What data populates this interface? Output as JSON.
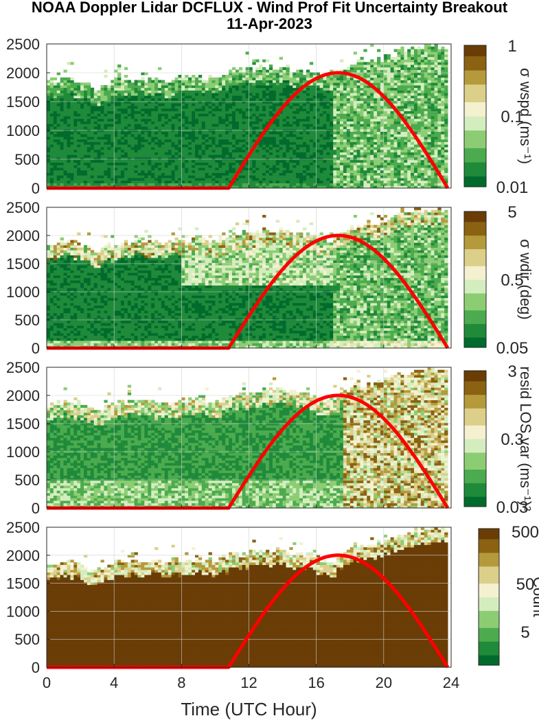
{
  "title_line1": "NOAA Doppler Lidar DCFLUX - Wind Prof Fit Uncertainty Breakout",
  "title_line2": "11-Apr-2023",
  "colors": {
    "sun_curve": "#ff0000",
    "colormap": [
      "#006b2c",
      "#1f8a3a",
      "#4cab4e",
      "#8ccd74",
      "#d4edbf",
      "#f4f1d0",
      "#dccf8a",
      "#b59a3c",
      "#8a6212",
      "#6a3c06"
    ]
  },
  "chart_data": [
    {
      "type": "heatmap",
      "panel": "wspd uncertainty",
      "xlim": [
        0,
        24
      ],
      "ylim": [
        0,
        2500
      ],
      "yticks": [
        "0",
        "500",
        "1000",
        "1500",
        "2000",
        "2500"
      ],
      "colorbar": {
        "label": "σ wspd (ms⁻¹)",
        "scale": "log",
        "ticks": [
          "1",
          "0.1",
          "0.01"
        ]
      },
      "cloud_top_m": [
        1850,
        1900,
        1850,
        1700,
        1850,
        1900,
        1900,
        1850,
        1900,
        1950,
        1900,
        2000,
        2050,
        2100,
        2100,
        2050,
        1950,
        1900,
        2150,
        2200,
        2250,
        2400,
        2450,
        2450
      ],
      "sun_curve": {
        "x": [
          0,
          10.8,
          17.2,
          23.8
        ],
        "y": [
          0,
          0,
          2000,
          0
        ]
      }
    },
    {
      "type": "heatmap",
      "panel": "wdir uncertainty",
      "xlim": [
        0,
        24
      ],
      "ylim": [
        0,
        2500
      ],
      "yticks": [
        "0",
        "500",
        "1000",
        "1500",
        "2000",
        "2500"
      ],
      "colorbar": {
        "label": "σ wdir (deg)",
        "scale": "log",
        "ticks": [
          "5",
          "0.5",
          "0.05"
        ]
      },
      "sun_curve": {
        "x": [
          0,
          10.8,
          17.2,
          23.8
        ],
        "y": [
          0,
          0,
          2000,
          0
        ]
      }
    },
    {
      "type": "heatmap",
      "panel": "residual LOS variance",
      "xlim": [
        0,
        24
      ],
      "ylim": [
        0,
        2500
      ],
      "yticks": [
        "0",
        "500",
        "1000",
        "1500",
        "2000",
        "2500"
      ],
      "colorbar": {
        "label": "resid LOS var (ms⁻¹)²",
        "scale": "log",
        "ticks": [
          "3",
          "0.3",
          "0.03"
        ]
      },
      "sun_curve": {
        "x": [
          0,
          10.8,
          17.2,
          23.8
        ],
        "y": [
          0,
          0,
          2000,
          0
        ]
      }
    },
    {
      "type": "heatmap",
      "panel": "count",
      "xlim": [
        0,
        24
      ],
      "ylim": [
        0,
        2500
      ],
      "yticks": [
        "0",
        "500",
        "1000",
        "1500",
        "2000",
        "2500"
      ],
      "xticks": [
        "0",
        "4",
        "8",
        "12",
        "16",
        "20",
        "24"
      ],
      "xlabel": "Time (UTC Hour)",
      "colorbar": {
        "label": "Count",
        "scale": "log",
        "ticks": [
          "500",
          "50",
          "5"
        ]
      },
      "sun_curve": {
        "x": [
          0,
          10.8,
          17.2,
          23.8
        ],
        "y": [
          0,
          0,
          2000,
          0
        ]
      }
    }
  ]
}
